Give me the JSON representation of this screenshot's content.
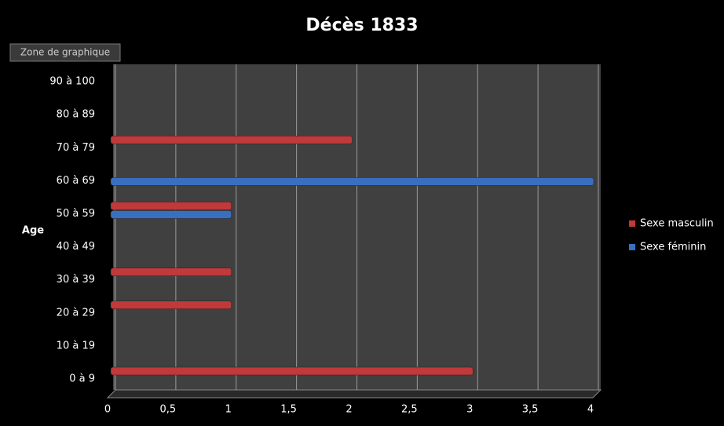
{
  "chart_data": {
    "type": "bar",
    "orientation": "horizontal",
    "title": "Décès 1833",
    "tooltip": "Zone de graphique",
    "y_label": "Age",
    "categories": [
      "0 à 9",
      "10 à 19",
      "20 à 29",
      "30 à 39",
      "40 à 49",
      "50 à 59",
      "60 à 69",
      "70 à 79",
      "80 à 89",
      "90 à 100"
    ],
    "series": [
      {
        "name": "Sexe masculin",
        "color": "#c0393b",
        "values": [
          3,
          null,
          1,
          1,
          null,
          1,
          null,
          2,
          null,
          null
        ]
      },
      {
        "name": "Sexe féminin",
        "color": "#3a6fc0",
        "values": [
          null,
          null,
          null,
          null,
          null,
          1,
          4,
          null,
          null,
          null
        ]
      }
    ],
    "xlim": [
      0,
      4
    ],
    "xticks": [
      0,
      {
        "value": 0.5,
        "label": "0,5"
      },
      1,
      {
        "value": 1.5,
        "label": "1,5"
      },
      2,
      {
        "value": 2.5,
        "label": "2,5"
      },
      3,
      {
        "value": 3.5,
        "label": "3,5"
      },
      4
    ],
    "grid": true,
    "legend": "right"
  }
}
